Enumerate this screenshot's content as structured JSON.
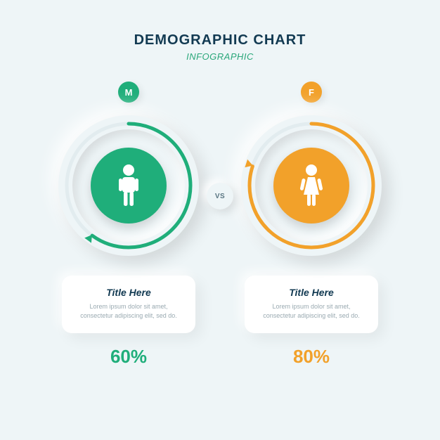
{
  "header": {
    "title": "DEMOGRAPHIC CHART",
    "subtitle": "INFOGRAPHIC",
    "title_color": "#123a52",
    "subtitle_color": "#2aa77a"
  },
  "vs_label": "VS",
  "background_color": "#eef5f7",
  "left": {
    "badge_letter": "M",
    "badge_color": "#1fae7a",
    "core_color": "#1fae7a",
    "ring_color": "#1fae7a",
    "ring_percent": 60,
    "card_title": "Title Here",
    "card_body": "Lorem ipsum dolor sit amet, consectetur adipiscing elit, sed do.",
    "percent_label": "60%",
    "percent_color": "#1fae7a"
  },
  "right": {
    "badge_letter": "F",
    "badge_color": "#f2a12a",
    "core_color": "#f2a12a",
    "ring_color": "#f2a12a",
    "ring_percent": 80,
    "card_title": "Title Here",
    "card_body": "Lorem ipsum dolor sit amet, consectetur adipiscing elit, sed do.",
    "percent_label": "80%",
    "percent_color": "#f2a12a"
  },
  "typography": {
    "title_fontsize": 20,
    "subtitle_fontsize": 13,
    "card_title_fontsize": 14,
    "card_body_fontsize": 9,
    "percent_fontsize": 26
  },
  "ring": {
    "outer_diameter": 200,
    "track_diameter": 186,
    "stroke_width": 5,
    "core_diameter": 108
  }
}
